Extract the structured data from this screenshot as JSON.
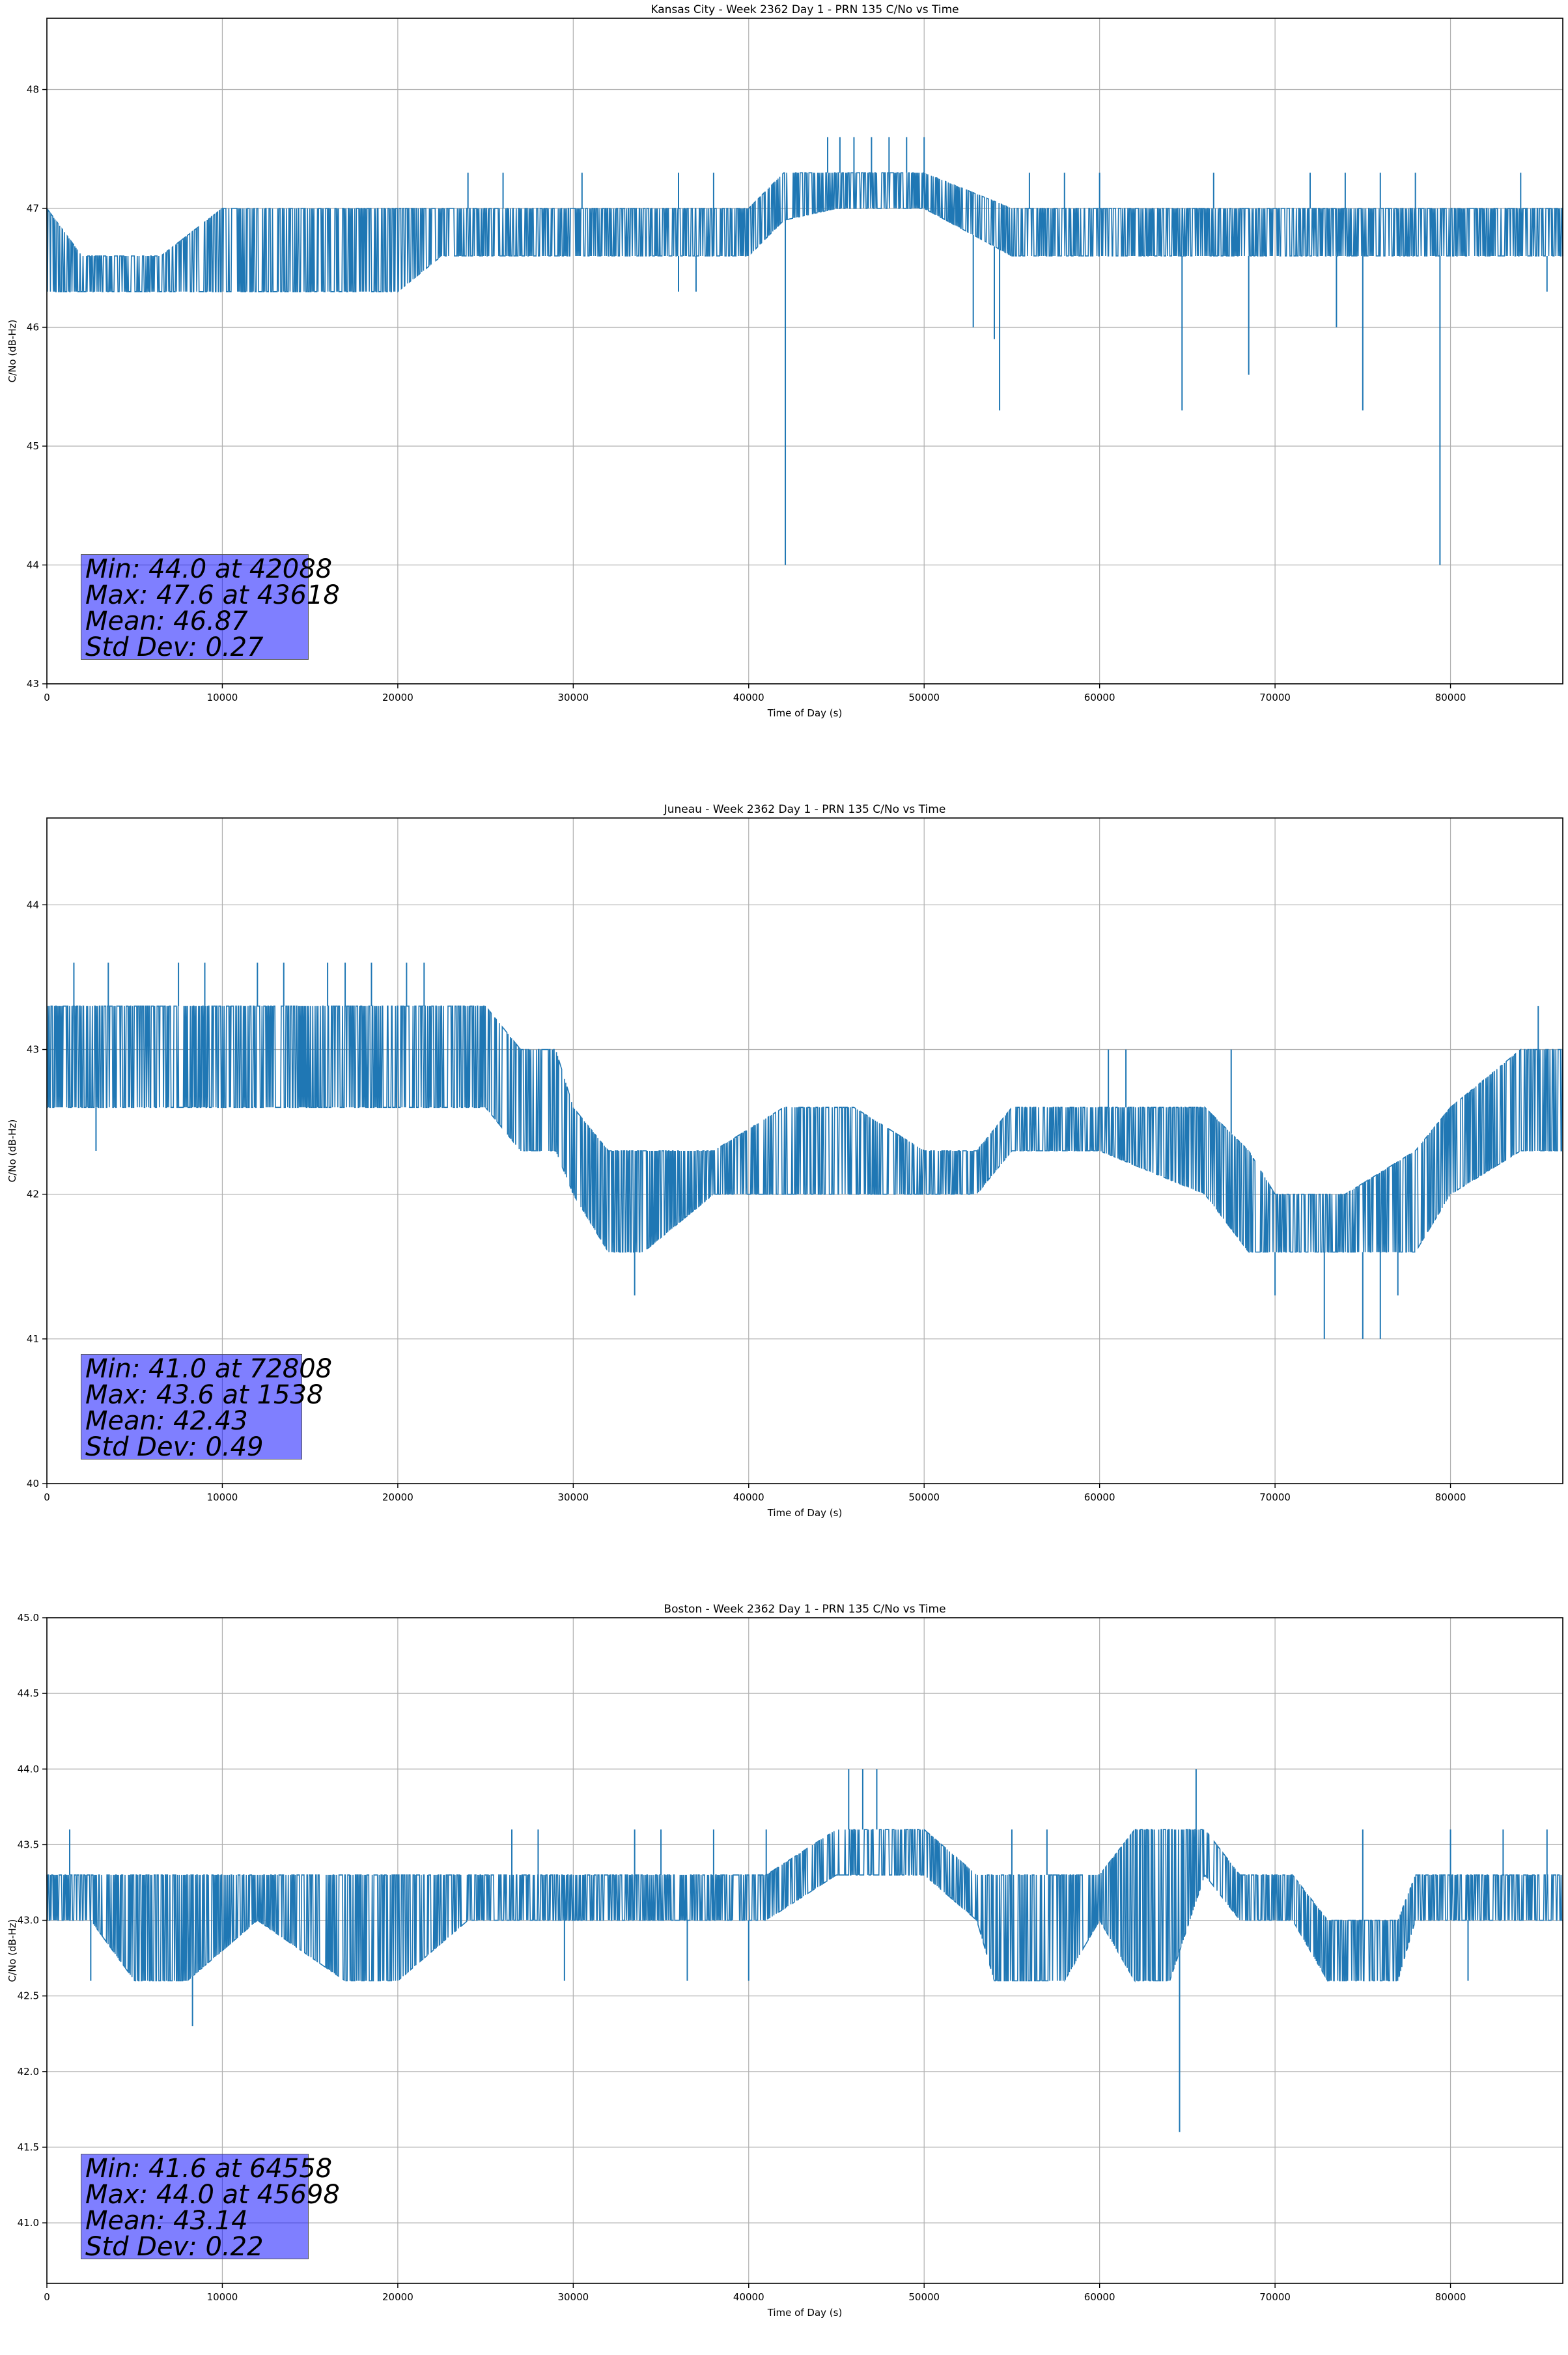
{
  "chart_data": [
    {
      "type": "line",
      "title": "Kansas City - Week 2362 Day 1 - PRN 135 C/No vs Time",
      "xlabel": "Time of Day (s)",
      "ylabel": "C/No (dB-Hz)",
      "xlim": [
        0,
        86400
      ],
      "ylim": [
        43.0,
        48.6
      ],
      "xticks": [
        0,
        10000,
        20000,
        30000,
        40000,
        50000,
        60000,
        70000,
        80000
      ],
      "yticks": [
        "43",
        "44",
        "45",
        "46",
        "47",
        "48"
      ],
      "grid": true,
      "color": "#1f77b4",
      "stats": [
        "Min: 44.0 at 42088",
        "Max: 47.6 at 43618",
        "Mean: 46.87",
        "Std Dev: 0.27"
      ],
      "stats_placement": "bottom-left",
      "series": [
        {
          "x": [
            0,
            2000,
            6500,
            10000,
            20000,
            22500,
            30000,
            40000,
            42000,
            45000,
            50000,
            55000,
            60000,
            65000,
            70000,
            75000,
            80000,
            86400
          ],
          "y_low": [
            46.3,
            46.3,
            46.3,
            46.3,
            46.3,
            46.6,
            46.6,
            46.6,
            46.9,
            47.0,
            47.0,
            46.6,
            46.6,
            46.6,
            46.6,
            46.6,
            46.6,
            46.6
          ],
          "y_high": [
            47.0,
            46.6,
            46.6,
            47.0,
            47.0,
            47.0,
            47.0,
            47.0,
            47.3,
            47.3,
            47.3,
            47.0,
            47.0,
            47.0,
            47.0,
            47.0,
            47.0,
            47.0
          ],
          "spikes_up": [
            [
              44500,
              47.6
            ],
            [
              45200,
              47.6
            ],
            [
              46000,
              47.6
            ],
            [
              47000,
              47.6
            ],
            [
              48000,
              47.6
            ],
            [
              49000,
              47.6
            ],
            [
              50000,
              47.6
            ],
            [
              24000,
              47.3
            ],
            [
              26000,
              47.3
            ],
            [
              30500,
              47.3
            ],
            [
              36000,
              47.3
            ],
            [
              38000,
              47.3
            ],
            [
              56000,
              47.3
            ],
            [
              58000,
              47.3
            ],
            [
              60000,
              47.3
            ],
            [
              66500,
              47.3
            ],
            [
              72000,
              47.3
            ],
            [
              74000,
              47.3
            ],
            [
              76000,
              47.3
            ],
            [
              78000,
              47.3
            ],
            [
              84000,
              47.3
            ]
          ],
          "spikes_down": [
            [
              42088,
              44.0
            ],
            [
              79400,
              44.0
            ],
            [
              54300,
              45.3
            ],
            [
              64700,
              45.3
            ],
            [
              75000,
              45.3
            ],
            [
              68500,
              45.6
            ],
            [
              52800,
              46.0
            ],
            [
              73500,
              46.0
            ],
            [
              54000,
              45.9
            ],
            [
              36000,
              46.3
            ],
            [
              37000,
              46.3
            ],
            [
              85500,
              46.3
            ]
          ]
        }
      ]
    },
    {
      "type": "line",
      "title": "Juneau - Week 2362 Day 1 - PRN 135 C/No vs Time",
      "xlabel": "Time of Day (s)",
      "ylabel": "C/No (dB-Hz)",
      "xlim": [
        0,
        86400
      ],
      "ylim": [
        40.0,
        44.6
      ],
      "xticks": [
        0,
        10000,
        20000,
        30000,
        40000,
        50000,
        60000,
        70000,
        80000
      ],
      "yticks": [
        "40",
        "41",
        "42",
        "43",
        "44"
      ],
      "grid": true,
      "color": "#1f77b4",
      "stats": [
        "Min: 41.0 at 72808",
        "Max: 43.6 at 1538",
        "Mean: 42.43",
        "Std Dev: 0.49"
      ],
      "stats_placement": "bottom-left",
      "series": [
        {
          "x": [
            0,
            5000,
            10000,
            15000,
            20000,
            25000,
            27000,
            29000,
            30000,
            32000,
            34000,
            38000,
            42000,
            46000,
            50000,
            53000,
            55000,
            60000,
            66000,
            68500,
            70000,
            74000,
            78000,
            80000,
            84000,
            86400
          ],
          "y_low": [
            42.6,
            42.6,
            42.6,
            42.6,
            42.6,
            42.6,
            42.3,
            42.3,
            42.0,
            41.6,
            41.6,
            42.0,
            42.0,
            42.0,
            42.0,
            42.0,
            42.3,
            42.3,
            42.0,
            41.6,
            41.6,
            41.6,
            41.6,
            42.0,
            42.3,
            42.3
          ],
          "y_high": [
            43.3,
            43.3,
            43.3,
            43.3,
            43.3,
            43.3,
            43.0,
            43.0,
            42.6,
            42.3,
            42.3,
            42.3,
            42.6,
            42.6,
            42.3,
            42.3,
            42.6,
            42.6,
            42.6,
            42.3,
            42.0,
            42.0,
            42.3,
            42.6,
            43.0,
            43.0
          ],
          "spikes_up": [
            [
              1538,
              43.6
            ],
            [
              3500,
              43.6
            ],
            [
              7500,
              43.6
            ],
            [
              9000,
              43.6
            ],
            [
              12000,
              43.6
            ],
            [
              13500,
              43.6
            ],
            [
              16000,
              43.6
            ],
            [
              17000,
              43.6
            ],
            [
              18500,
              43.6
            ],
            [
              20500,
              43.6
            ],
            [
              21500,
              43.6
            ],
            [
              60500,
              43.0
            ],
            [
              61500,
              43.0
            ],
            [
              67500,
              43.0
            ],
            [
              85000,
              43.3
            ]
          ],
          "spikes_down": [
            [
              72808,
              41.0
            ],
            [
              75000,
              41.0
            ],
            [
              76000,
              41.0
            ],
            [
              33500,
              41.3
            ],
            [
              2800,
              42.3
            ],
            [
              70000,
              41.3
            ],
            [
              77000,
              41.3
            ]
          ]
        }
      ]
    },
    {
      "type": "line",
      "title": "Boston - Week 2362 Day 1 - PRN 135 C/No vs Time",
      "xlabel": "Time of Day (s)",
      "ylabel": "C/No (dB-Hz)",
      "xlim": [
        0,
        86400
      ],
      "ylim": [
        40.6,
        45.0
      ],
      "xticks": [
        0,
        10000,
        20000,
        30000,
        40000,
        50000,
        60000,
        70000,
        80000
      ],
      "yticks": [
        "41.0",
        "41.5",
        "42.0",
        "42.5",
        "43.0",
        "43.5",
        "44.0",
        "44.5",
        "45.0"
      ],
      "grid": true,
      "color": "#1f77b4",
      "stats": [
        "Min: 41.6 at 64558",
        "Max: 44.0 at 45698",
        "Mean: 43.14",
        "Std Dev: 0.22"
      ],
      "stats_placement": "bottom-left",
      "series": [
        {
          "x": [
            0,
            2500,
            5000,
            8000,
            12000,
            17000,
            20000,
            24000,
            30000,
            40000,
            41000,
            45000,
            50000,
            53000,
            54000,
            58000,
            60000,
            62000,
            64000,
            66000,
            68000,
            71000,
            73000,
            77000,
            78000,
            86400
          ],
          "y_low": [
            43.0,
            43.0,
            42.6,
            42.6,
            43.0,
            42.6,
            42.6,
            43.0,
            43.0,
            43.0,
            43.0,
            43.3,
            43.3,
            43.0,
            42.6,
            42.6,
            43.0,
            42.6,
            42.6,
            43.3,
            43.0,
            43.0,
            42.6,
            42.6,
            43.0,
            43.0
          ],
          "y_high": [
            43.3,
            43.3,
            43.3,
            43.3,
            43.3,
            43.3,
            43.3,
            43.3,
            43.3,
            43.3,
            43.3,
            43.6,
            43.6,
            43.3,
            43.3,
            43.3,
            43.3,
            43.6,
            43.6,
            43.6,
            43.3,
            43.3,
            43.0,
            43.0,
            43.3,
            43.3
          ],
          "spikes_up": [
            [
              45698,
              44.0
            ],
            [
              46500,
              44.0
            ],
            [
              47300,
              44.0
            ],
            [
              65500,
              44.0
            ],
            [
              1300,
              43.6
            ],
            [
              26500,
              43.6
            ],
            [
              28000,
              43.6
            ],
            [
              33500,
              43.6
            ],
            [
              35000,
              43.6
            ],
            [
              38000,
              43.6
            ],
            [
              41000,
              43.6
            ],
            [
              75000,
              43.6
            ],
            [
              80000,
              43.6
            ],
            [
              83000,
              43.6
            ],
            [
              85500,
              43.6
            ],
            [
              55000,
              43.6
            ],
            [
              57000,
              43.6
            ]
          ],
          "spikes_down": [
            [
              64558,
              41.6
            ],
            [
              8300,
              42.3
            ],
            [
              29500,
              42.6
            ],
            [
              36500,
              42.6
            ],
            [
              40000,
              42.6
            ],
            [
              81000,
              42.6
            ],
            [
              2500,
              42.6
            ]
          ]
        }
      ]
    }
  ]
}
